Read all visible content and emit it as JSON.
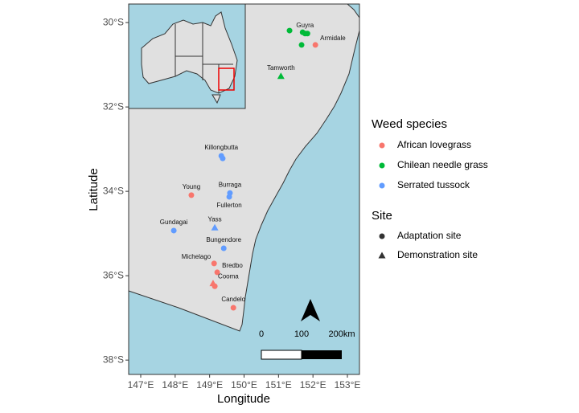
{
  "chart_data": {
    "type": "scatter",
    "x_label": "Longitude",
    "y_label": "Latitude",
    "xlim": [
      146.65,
      153.35
    ],
    "ylim": [
      -38.34,
      -29.56
    ],
    "xticks": [
      {
        "value": 147,
        "label": "147°E"
      },
      {
        "value": 148,
        "label": "148°E"
      },
      {
        "value": 149,
        "label": "149°E"
      },
      {
        "value": 150,
        "label": "150°E"
      },
      {
        "value": 151,
        "label": "151°E"
      },
      {
        "value": 152,
        "label": "152°E"
      },
      {
        "value": 153,
        "label": "153°E"
      }
    ],
    "yticks": [
      {
        "value": -30,
        "label": "30°S"
      },
      {
        "value": -32,
        "label": "32°S"
      },
      {
        "value": -34,
        "label": "34°S"
      },
      {
        "value": -36,
        "label": "36°S"
      },
      {
        "value": -38,
        "label": "38°S"
      }
    ],
    "legend_title": "Weed species",
    "series": [
      {
        "name": "African lovegrass",
        "color": "#F8766D",
        "x": [
          152.07,
          148.47,
          149.13,
          149.22,
          149.1,
          149.15,
          149.69
        ],
        "values": [
          -30.53,
          -34.09,
          -35.71,
          -35.92,
          -36.18,
          -36.25,
          -36.76
        ],
        "shapes": [
          "circle",
          "circle",
          "circle",
          "circle",
          "triangle",
          "circle",
          "circle"
        ],
        "labels": [
          "Armidale",
          "Young",
          "Michelago",
          "Bredbo",
          "Cooma",
          null,
          "Candelo"
        ],
        "label_pos": [
          "right",
          "above",
          "left",
          "right",
          "right",
          null,
          "above"
        ]
      },
      {
        "name": "Chilean needle grass",
        "color": "#00BA38",
        "x": [
          151.32,
          151.7,
          151.77,
          151.84,
          151.67,
          151.07
        ],
        "values": [
          -30.19,
          -30.23,
          -30.26,
          -30.26,
          -30.53,
          -31.27
        ],
        "shapes": [
          "circle",
          "circle",
          "circle",
          "circle",
          "circle",
          "triangle"
        ],
        "labels": [
          null,
          null,
          "Guyra",
          null,
          null,
          "Tamworth"
        ],
        "label_pos": [
          null,
          null,
          "above",
          null,
          null,
          "above"
        ]
      },
      {
        "name": "Serrated tussock",
        "color": "#619CFF",
        "x": [
          149.34,
          149.38,
          149.59,
          149.57,
          147.96,
          149.15,
          149.41
        ],
        "values": [
          -33.16,
          -33.22,
          -34.04,
          -34.13,
          -34.93,
          -34.86,
          -35.35
        ],
        "shapes": [
          "circle",
          "circle",
          "circle",
          "circle",
          "circle",
          "triangle",
          "circle"
        ],
        "labels": [
          "Killongbutta",
          null,
          "Burraga",
          "Fullerton",
          "Gundagai",
          "Yass",
          "Bungendore"
        ],
        "label_pos": [
          "above",
          null,
          "above",
          "below",
          "above",
          "above",
          "above"
        ]
      }
    ],
    "shape_legend": {
      "title": "Site",
      "items": [
        {
          "name": "Adaptation site",
          "shape": "circle"
        },
        {
          "name": "Demonstration site",
          "shape": "triangle"
        }
      ]
    },
    "scale_bar": {
      "labels": [
        "0",
        "100",
        "200km"
      ]
    }
  }
}
